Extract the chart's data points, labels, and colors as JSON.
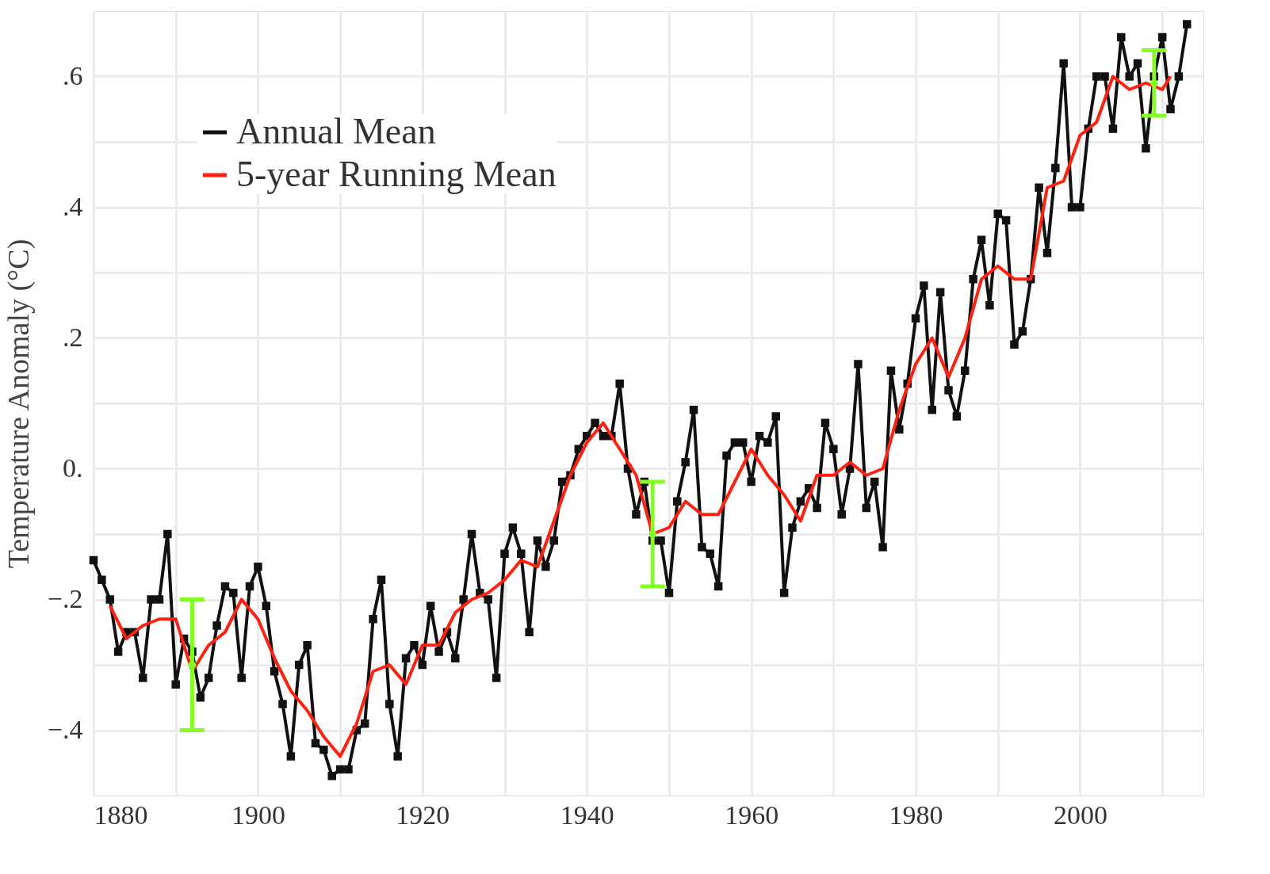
{
  "chart_data": {
    "type": "line",
    "ylabel": "Temperature Anomaly (°C)",
    "x": [
      1880,
      1881,
      1882,
      1883,
      1884,
      1885,
      1886,
      1887,
      1888,
      1889,
      1890,
      1891,
      1892,
      1893,
      1894,
      1895,
      1896,
      1897,
      1898,
      1899,
      1900,
      1901,
      1902,
      1903,
      1904,
      1905,
      1906,
      1907,
      1908,
      1909,
      1910,
      1911,
      1912,
      1913,
      1914,
      1915,
      1916,
      1917,
      1918,
      1919,
      1920,
      1921,
      1922,
      1923,
      1924,
      1925,
      1926,
      1927,
      1928,
      1929,
      1930,
      1931,
      1932,
      1933,
      1934,
      1935,
      1936,
      1937,
      1938,
      1939,
      1940,
      1941,
      1942,
      1943,
      1944,
      1945,
      1946,
      1947,
      1948,
      1949,
      1950,
      1951,
      1952,
      1953,
      1954,
      1955,
      1956,
      1957,
      1958,
      1959,
      1960,
      1961,
      1962,
      1963,
      1964,
      1965,
      1966,
      1967,
      1968,
      1969,
      1970,
      1971,
      1972,
      1973,
      1974,
      1975,
      1976,
      1977,
      1978,
      1979,
      1980,
      1981,
      1982,
      1983,
      1984,
      1985,
      1986,
      1987,
      1988,
      1989,
      1990,
      1991,
      1992,
      1993,
      1994,
      1995,
      1996,
      1997,
      1998,
      1999,
      2000,
      2001,
      2002,
      2003,
      2004,
      2005,
      2006,
      2007,
      2008,
      2009,
      2010,
      2011,
      2012,
      2013
    ],
    "series": [
      {
        "name": "Annual Mean",
        "color": "#111111",
        "marker": "square",
        "values": [
          -0.14,
          -0.17,
          -0.2,
          -0.28,
          -0.25,
          -0.25,
          -0.32,
          -0.2,
          -0.2,
          -0.1,
          -0.33,
          -0.26,
          -0.28,
          -0.35,
          -0.32,
          -0.24,
          -0.18,
          -0.19,
          -0.32,
          -0.18,
          -0.15,
          -0.21,
          -0.31,
          -0.36,
          -0.44,
          -0.3,
          -0.27,
          -0.42,
          -0.43,
          -0.47,
          -0.46,
          -0.46,
          -0.4,
          -0.39,
          -0.23,
          -0.17,
          -0.36,
          -0.44,
          -0.29,
          -0.27,
          -0.3,
          -0.21,
          -0.28,
          -0.25,
          -0.29,
          -0.2,
          -0.1,
          -0.19,
          -0.2,
          -0.32,
          -0.13,
          -0.09,
          -0.13,
          -0.25,
          -0.11,
          -0.15,
          -0.11,
          -0.02,
          -0.01,
          0.03,
          0.05,
          0.07,
          0.05,
          0.05,
          0.13,
          0.0,
          -0.07,
          -0.02,
          -0.11,
          -0.11,
          -0.19,
          -0.05,
          0.01,
          0.09,
          -0.12,
          -0.13,
          -0.18,
          0.02,
          0.04,
          0.04,
          -0.02,
          0.05,
          0.04,
          0.08,
          -0.19,
          -0.09,
          -0.05,
          -0.03,
          -0.06,
          0.07,
          0.03,
          -0.07,
          0.0,
          0.16,
          -0.06,
          -0.02,
          -0.12,
          0.15,
          0.06,
          0.13,
          0.23,
          0.28,
          0.09,
          0.27,
          0.12,
          0.08,
          0.15,
          0.29,
          0.35,
          0.25,
          0.39,
          0.38,
          0.19,
          0.21,
          0.29,
          0.43,
          0.33,
          0.46,
          0.62,
          0.4,
          0.4,
          0.52,
          0.6,
          0.6,
          0.52,
          0.66,
          0.6,
          0.62,
          0.49,
          0.6,
          0.66,
          0.55,
          0.6,
          0.68
        ]
      },
      {
        "name": "5-year Running Mean",
        "color": "#ff2010",
        "marker": "none",
        "x": [
          1882,
          1884,
          1886,
          1888,
          1890,
          1892,
          1894,
          1896,
          1898,
          1900,
          1902,
          1904,
          1906,
          1908,
          1910,
          1912,
          1914,
          1916,
          1918,
          1920,
          1922,
          1924,
          1926,
          1928,
          1930,
          1932,
          1934,
          1936,
          1938,
          1940,
          1942,
          1944,
          1946,
          1948,
          1950,
          1952,
          1954,
          1956,
          1958,
          1960,
          1962,
          1964,
          1966,
          1968,
          1970,
          1972,
          1974,
          1976,
          1978,
          1980,
          1982,
          1984,
          1986,
          1988,
          1990,
          1992,
          1994,
          1996,
          1998,
          2000,
          2002,
          2004,
          2006,
          2008,
          2010,
          2011
        ],
        "values": [
          -0.21,
          -0.26,
          -0.24,
          -0.23,
          -0.23,
          -0.31,
          -0.27,
          -0.25,
          -0.2,
          -0.23,
          -0.29,
          -0.34,
          -0.37,
          -0.41,
          -0.44,
          -0.39,
          -0.31,
          -0.3,
          -0.33,
          -0.27,
          -0.27,
          -0.22,
          -0.2,
          -0.19,
          -0.17,
          -0.14,
          -0.15,
          -0.08,
          -0.01,
          0.04,
          0.07,
          0.03,
          -0.01,
          -0.1,
          -0.09,
          -0.05,
          -0.07,
          -0.07,
          -0.02,
          0.03,
          -0.01,
          -0.04,
          -0.08,
          -0.01,
          -0.01,
          0.01,
          -0.01,
          0.0,
          0.09,
          0.16,
          0.2,
          0.14,
          0.2,
          0.29,
          0.31,
          0.29,
          0.29,
          0.43,
          0.44,
          0.51,
          0.53,
          0.6,
          0.58,
          0.59,
          0.58,
          0.6
        ]
      },
      {
        "type": "scatter",
        "color": "#80ff20",
        "marker": "circle",
        "x": [
          1892,
          1948,
          2009
        ],
        "values": [
          -0.3,
          -0.1,
          0.59
        ],
        "errors": [
          0.1,
          0.08,
          0.05
        ]
      }
    ],
    "xlim": [
      1880,
      2015
    ],
    "xticks": [
      1880,
      {
        "value": 1890,
        "label": null
      },
      1900,
      {
        "value": 1910,
        "label": null
      },
      1920,
      {
        "value": 1930,
        "label": null
      },
      1940,
      {
        "value": 1950,
        "label": null
      },
      1960,
      {
        "value": 1970,
        "label": null
      },
      1980,
      {
        "value": 1990,
        "label": null
      },
      2000,
      {
        "value": 2010,
        "label": null
      }
    ],
    "ylim": [
      -0.5,
      0.7
    ],
    "yticks": [
      {
        "value": -0.4,
        "label": "−.4"
      },
      {
        "value": -0.3,
        "label": null
      },
      {
        "value": -0.2,
        "label": "−.2"
      },
      {
        "value": -0.1,
        "label": null
      },
      {
        "value": 0,
        "label": "0."
      },
      {
        "value": 0.1,
        "label": null
      },
      {
        "value": 0.2,
        "label": ".2"
      },
      {
        "value": 0.3,
        "label": null
      },
      {
        "value": 0.4,
        "label": ".4"
      },
      {
        "value": 0.5,
        "label": null
      },
      {
        "value": 0.6,
        "label": ".6"
      }
    ],
    "grid": true,
    "legend": "top left"
  }
}
